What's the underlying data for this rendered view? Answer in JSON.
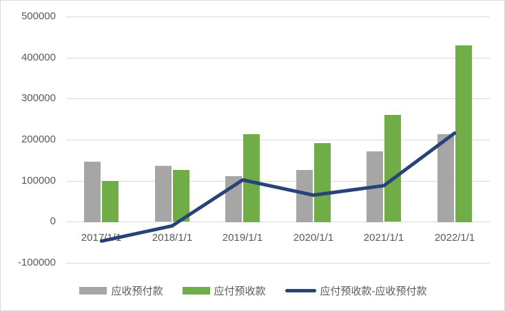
{
  "chart_data": {
    "type": "bar",
    "subtype": "combo-bar-line",
    "categories": [
      "2017/1/1",
      "2018/1/1",
      "2019/1/1",
      "2020/1/1",
      "2021/1/1",
      "2022/1/1"
    ],
    "series": [
      {
        "name": "应收预付款",
        "type": "bar",
        "color": "#A6A6A6",
        "values": [
          147000,
          136000,
          112000,
          127000,
          172000,
          214000
        ]
      },
      {
        "name": "应付预收款",
        "type": "bar",
        "color": "#70AD47",
        "values": [
          100000,
          126000,
          214000,
          192000,
          260000,
          430000
        ]
      },
      {
        "name": "应付预收款-应收预付款",
        "type": "line",
        "color": "#264478",
        "values": [
          -47000,
          -10000,
          102000,
          65000,
          88000,
          216000
        ]
      }
    ],
    "title": "",
    "xlabel": "",
    "ylabel": "",
    "ylim": [
      -100000,
      500000
    ],
    "y_tick_interval": 100000,
    "y_tick_labels": [
      "500000",
      "400000",
      "300000",
      "200000",
      "100000",
      "0",
      "-100000"
    ],
    "grid": true,
    "legend_position": "bottom",
    "colors": {
      "gridline": "#D9D9D9",
      "axis_text": "#595959",
      "chart_border": "#D9D9D9",
      "background": "#FFFFFF"
    }
  }
}
